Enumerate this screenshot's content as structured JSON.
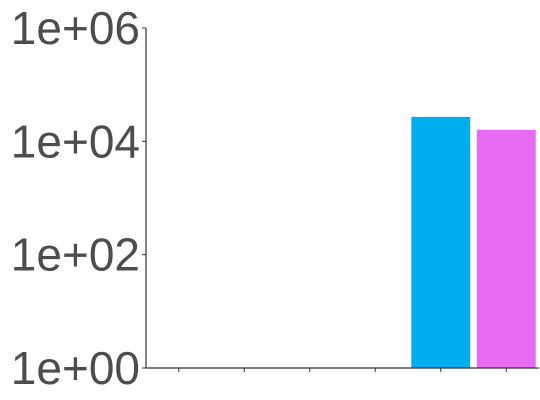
{
  "chart_data": {
    "type": "bar",
    "title": "",
    "xlabel": "",
    "ylabel": "",
    "y_scale": "log10",
    "ylim": [
      1,
      1000000
    ],
    "y_ticks": [
      {
        "value": 1,
        "label": "1e+00"
      },
      {
        "value": 100,
        "label": "1e+02"
      },
      {
        "value": 10000,
        "label": "1e+04"
      },
      {
        "value": 1000000,
        "label": "1e+06"
      }
    ],
    "categories": [
      "",
      "",
      "",
      "",
      "",
      ""
    ],
    "series": [
      {
        "color": "#00aeef",
        "values": [
          null,
          null,
          null,
          null,
          27000,
          null
        ]
      },
      {
        "color": "#e76bf3",
        "values": [
          null,
          null,
          null,
          null,
          null,
          16000
        ]
      }
    ],
    "grid": false,
    "legend": "none"
  }
}
